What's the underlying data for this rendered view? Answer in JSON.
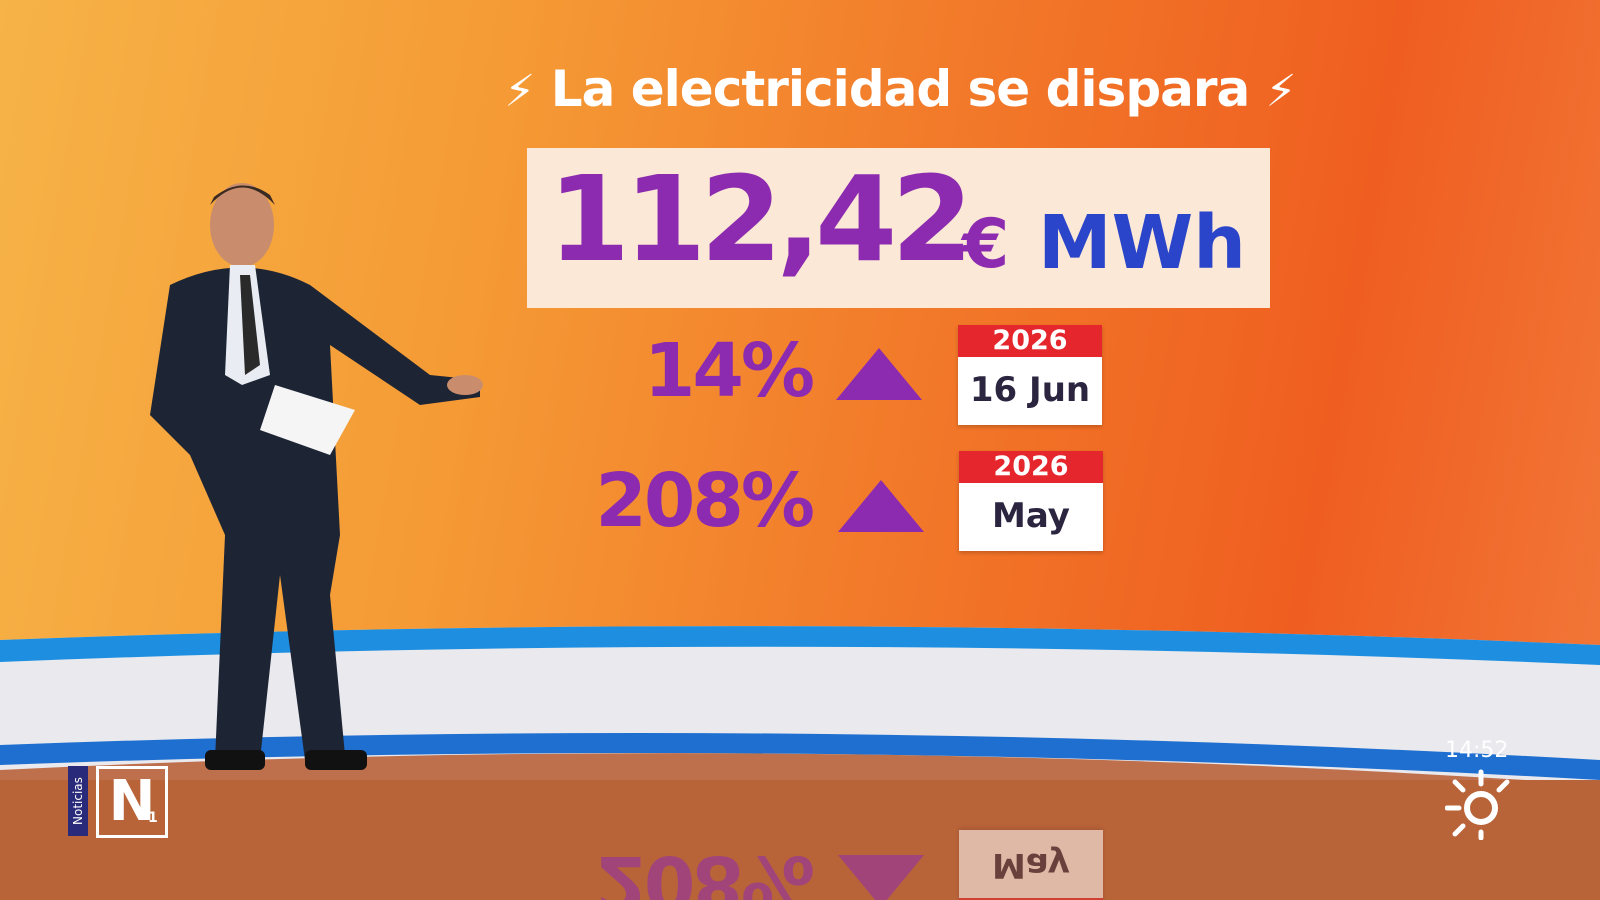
{
  "header": {
    "title": "La electricidad se dispara"
  },
  "price": {
    "amount": "112,42",
    "currency": "€",
    "unit": "MWh"
  },
  "rows": [
    {
      "change": "14%",
      "year": "2026",
      "date": "16 Jun"
    },
    {
      "change": "208%",
      "year": "2026",
      "date": "May"
    }
  ],
  "logo": {
    "channel": "Noticias",
    "letter": "N",
    "number": "1"
  },
  "clock": "14:52"
}
